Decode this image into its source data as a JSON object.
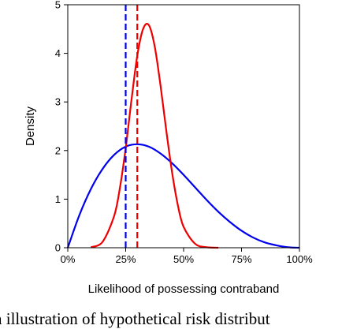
{
  "chart_data": {
    "type": "line",
    "xlabel": "Likelihood of possessing contraband",
    "ylabel": "Density",
    "xlim": [
      0,
      1
    ],
    "ylim": [
      0,
      5
    ],
    "x_ticks": [
      0,
      0.25,
      0.5,
      0.75,
      1
    ],
    "x_tick_labels": [
      "0%",
      "25%",
      "50%",
      "75%",
      "100%"
    ],
    "y_ticks": [
      0,
      1,
      2,
      3,
      4,
      5
    ],
    "y_tick_labels": [
      "0",
      "1",
      "2",
      "3",
      "4",
      "5"
    ],
    "grid": false,
    "legend": "none",
    "series": [
      {
        "color": "#0000ee",
        "style": "solid",
        "x": [
          0,
          0.05,
          0.1,
          0.15,
          0.2,
          0.25,
          0.3,
          0.35,
          0.4,
          0.45,
          0.5,
          0.55,
          0.6,
          0.65,
          0.7,
          0.75,
          0.8,
          0.85,
          0.9,
          0.95,
          1
        ],
        "y": [
          0,
          0.67,
          1.21,
          1.62,
          1.91,
          2.08,
          2.13,
          2.08,
          1.94,
          1.74,
          1.5,
          1.24,
          0.98,
          0.74,
          0.53,
          0.35,
          0.21,
          0.11,
          0.05,
          0.01,
          0
        ]
      },
      {
        "color": "#ee0000",
        "style": "solid",
        "x": [
          0.1,
          0.15,
          0.2,
          0.225,
          0.25,
          0.275,
          0.3,
          0.325,
          0.35,
          0.375,
          0.4,
          0.425,
          0.45,
          0.475,
          0.5,
          0.55,
          0.6,
          0.65
        ],
        "y": [
          0.01,
          0.12,
          0.65,
          1.23,
          2.05,
          3.04,
          3.95,
          4.5,
          4.58,
          4.15,
          3.35,
          2.42,
          1.56,
          0.88,
          0.43,
          0.08,
          0.01,
          0
        ]
      }
    ],
    "reference_lines": [
      {
        "x": 0.25,
        "color": "#0000ee",
        "style": "dashed"
      },
      {
        "x": 0.3,
        "color": "#ee0000",
        "style": "dashed"
      }
    ]
  },
  "caption": "n illustration of hypothetical risk distribut"
}
